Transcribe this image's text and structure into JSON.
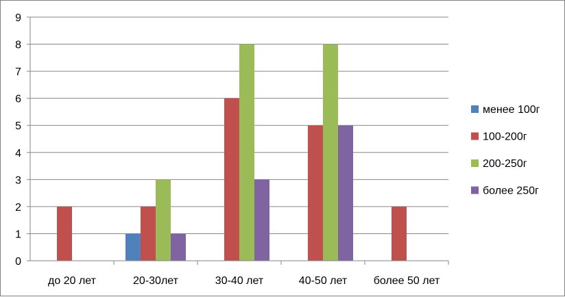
{
  "chart_data": {
    "type": "bar",
    "categories": [
      "до 20 лет",
      "20-30лет",
      "30-40 лет",
      "40-50 лет",
      "более 50 лет"
    ],
    "series": [
      {
        "name": "менее 100г",
        "color": "#4f81bd",
        "values": [
          0,
          1,
          0,
          0,
          0
        ]
      },
      {
        "name": "100-200г",
        "color": "#c0504d",
        "values": [
          2,
          2,
          6,
          5,
          2
        ]
      },
      {
        "name": "200-250г",
        "color": "#9bbb59",
        "values": [
          0,
          3,
          8,
          8,
          0
        ]
      },
      {
        "name": "более 250г",
        "color": "#8064a2",
        "values": [
          0,
          1,
          3,
          5,
          0
        ]
      }
    ],
    "yticks": [
      "0",
      "1",
      "2",
      "3",
      "4",
      "5",
      "6",
      "7",
      "8",
      "9"
    ],
    "ylim": [
      0,
      9
    ],
    "grid": true,
    "legend": "right"
  }
}
